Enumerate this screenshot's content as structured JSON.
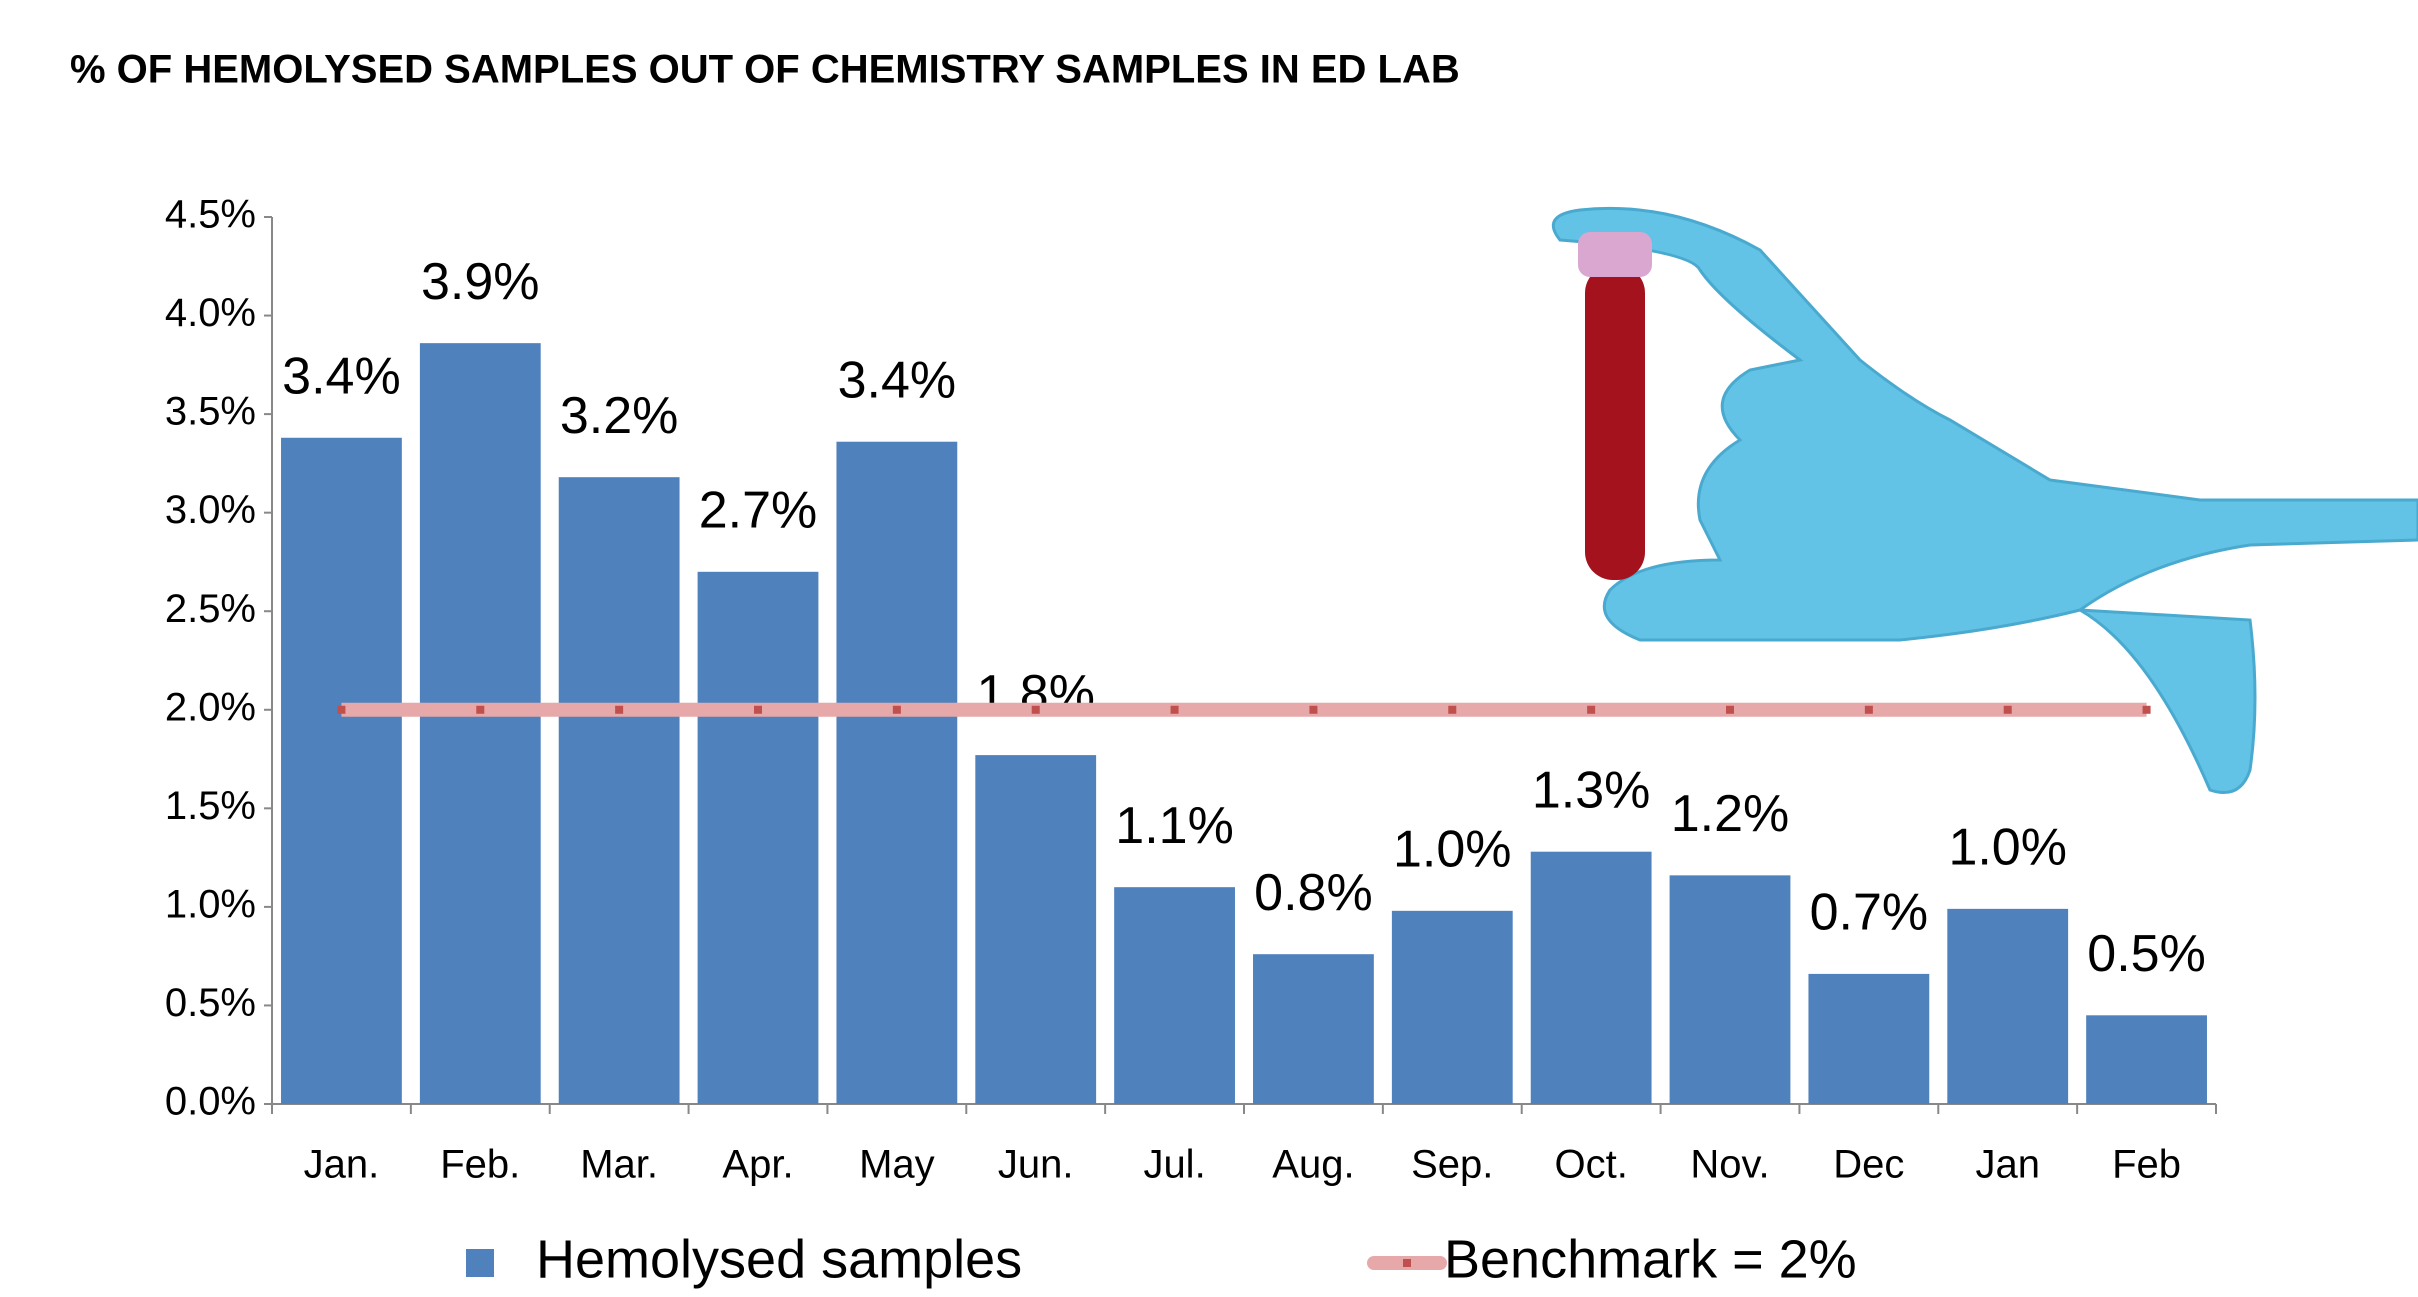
{
  "chart_data": {
    "type": "bar",
    "title": "% OF HEMOLYSED SAMPLES OUT OF CHEMISTRY SAMPLES IN ED LAB",
    "categories": [
      "Jan.",
      "Feb.",
      "Mar.",
      "Apr.",
      "May",
      "Jun.",
      "Jul.",
      "Aug.",
      "Sep.",
      "Oct.",
      "Nov.",
      "Dec",
      "Jan",
      "Feb"
    ],
    "series": [
      {
        "name": "Hemolysed samples",
        "type": "bar",
        "color": "#4f81bd",
        "values": [
          3.38,
          3.86,
          3.18,
          2.7,
          3.36,
          1.77,
          1.1,
          0.76,
          0.98,
          1.28,
          1.16,
          0.66,
          0.99,
          0.45
        ],
        "value_labels": [
          "3.4%",
          "3.9%",
          "3.2%",
          "2.7%",
          "3.4%",
          "1.8%",
          "1.1%",
          "0.8%",
          "1.0%",
          "1.3%",
          "1.2%",
          "0.7%",
          "1.0%",
          "0.5%"
        ]
      },
      {
        "name": "Benchmark = 2%",
        "type": "line",
        "color": "#e6a8a8",
        "marker_color": "#c0504d",
        "values": [
          2,
          2,
          2,
          2,
          2,
          2,
          2,
          2,
          2,
          2,
          2,
          2,
          2,
          2
        ]
      }
    ],
    "ylim": [
      0,
      4.5
    ],
    "yticks": [
      {
        "value": 0,
        "label": "0.0%"
      },
      {
        "value": 0.5,
        "label": "0.5%"
      },
      {
        "value": 1,
        "label": "1.0%"
      },
      {
        "value": 1.5,
        "label": "1.5%"
      },
      {
        "value": 2,
        "label": "2.0%"
      },
      {
        "value": 2.5,
        "label": "2.5%"
      },
      {
        "value": 3,
        "label": "3.0%"
      },
      {
        "value": 3.5,
        "label": "3.5%"
      },
      {
        "value": 4,
        "label": "4.0%"
      },
      {
        "value": 4.5,
        "label": "4.5%"
      }
    ],
    "legend": "bottom"
  }
}
